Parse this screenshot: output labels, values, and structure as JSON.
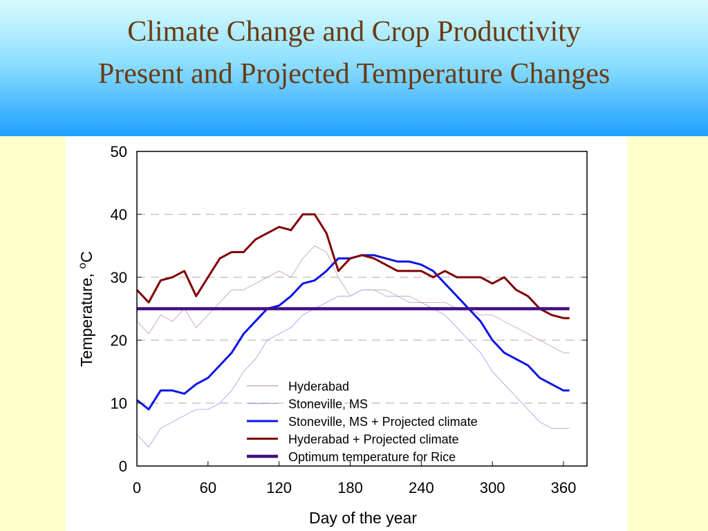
{
  "slide": {
    "title_line1": "Climate Change and Crop Productivity",
    "title_line2": "Present and Projected Temperature Changes"
  },
  "chart_data": {
    "type": "line",
    "xlabel": "Day of the year",
    "ylabel": "Temperature, ",
    "ylabel_superscript": "o",
    "ylabel_unit": "C",
    "xlim": [
      0,
      365
    ],
    "ylim": [
      0,
      50
    ],
    "xticks": [
      0,
      60,
      120,
      180,
      240,
      300,
      360
    ],
    "yticks": [
      0,
      10,
      20,
      30,
      40,
      50
    ],
    "grid": "horizontal dashed",
    "legend_position": "bottom-center",
    "x": [
      0,
      10,
      20,
      30,
      40,
      50,
      60,
      70,
      80,
      90,
      100,
      110,
      120,
      130,
      140,
      150,
      160,
      170,
      180,
      190,
      200,
      210,
      220,
      230,
      240,
      250,
      260,
      270,
      280,
      290,
      300,
      310,
      320,
      330,
      340,
      350,
      360,
      365
    ],
    "series": [
      {
        "name": "Hyderabad",
        "color": "#c89a9a",
        "style": "thin",
        "values": [
          23,
          21,
          24,
          23,
          25,
          22,
          24,
          26,
          28,
          28,
          29,
          30,
          31,
          30,
          33,
          35,
          34,
          30,
          27,
          28,
          28,
          28,
          27,
          27,
          26,
          26,
          26,
          25,
          25,
          24,
          24,
          23,
          22,
          21,
          20,
          19,
          18,
          18
        ]
      },
      {
        "name": "Stoneville, MS",
        "color": "#9a9ae8",
        "style": "thin",
        "values": [
          5,
          3,
          6,
          7,
          8,
          9,
          9,
          10,
          12,
          15,
          17,
          20,
          21,
          22,
          24,
          25,
          26,
          27,
          27,
          28,
          28,
          27,
          27,
          26,
          26,
          25,
          24,
          22,
          20,
          18,
          15,
          13,
          11,
          9,
          7,
          6,
          6,
          6
        ]
      },
      {
        "name": "Stoneville, MS + Projected climate",
        "color": "#0a14e6",
        "style": "thick",
        "values": [
          10.5,
          9,
          12,
          12,
          11.5,
          13,
          14,
          16,
          18,
          21,
          23,
          25,
          25.5,
          27,
          29,
          29.5,
          31,
          33,
          33,
          33.5,
          33.5,
          33,
          32.5,
          32.5,
          32,
          31,
          29,
          27,
          25,
          23,
          20,
          18,
          17,
          16,
          14,
          13,
          12,
          12
        ]
      },
      {
        "name": "Hyderabad + Projected climate",
        "color": "#800000",
        "style": "thick",
        "values": [
          28,
          26,
          29.5,
          30,
          31,
          27,
          30,
          33,
          34,
          34,
          36,
          37,
          38,
          37.5,
          40,
          40,
          37,
          31,
          33,
          33.5,
          33,
          32,
          31,
          31,
          31,
          30,
          31,
          30,
          30,
          30,
          29,
          30,
          28,
          27,
          25,
          24,
          23.5,
          23.5
        ]
      },
      {
        "name": "Optimum temperature for Rice",
        "color": "#3f0f80",
        "style": "extra-thick",
        "values": [
          25,
          25,
          25,
          25,
          25,
          25,
          25,
          25,
          25,
          25,
          25,
          25,
          25,
          25,
          25,
          25,
          25,
          25,
          25,
          25,
          25,
          25,
          25,
          25,
          25,
          25,
          25,
          25,
          25,
          25,
          25,
          25,
          25,
          25,
          25,
          25,
          25,
          25
        ]
      }
    ]
  }
}
